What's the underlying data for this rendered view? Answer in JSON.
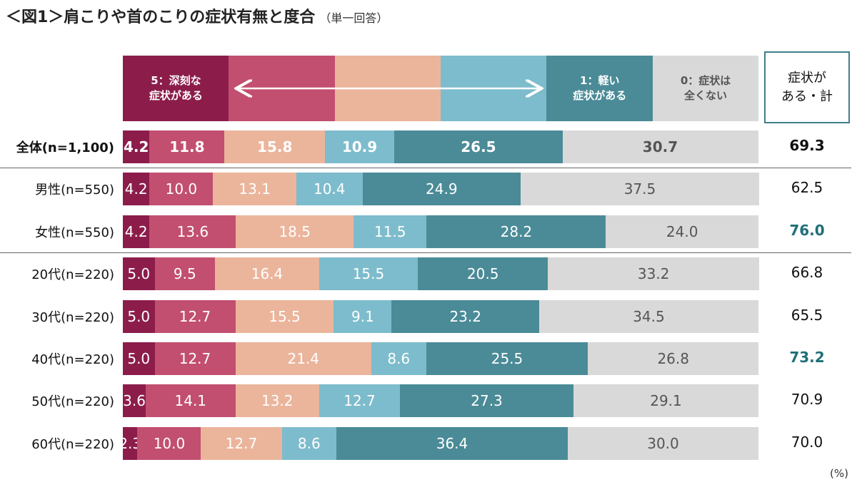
{
  "chart_data": {
    "type": "stacked-bar-horizontal",
    "title": "＜図1＞肩こりや首のこりの症状有無と度合",
    "subtitle": "（単一回答）",
    "unit": "(%)",
    "xlim": [
      0,
      100
    ],
    "categories": [
      "全体(n=1,100)",
      "男性(n=550)",
      "女性(n=550)",
      "20代(n=220)",
      "30代(n=220)",
      "40代(n=220)",
      "50代(n=220)",
      "60代(n=220)"
    ],
    "series": [
      {
        "name": "5：深刻な\n症状がある",
        "color": "#8c1d4b",
        "values": [
          4.2,
          4.2,
          4.2,
          5.0,
          5.0,
          5.0,
          3.6,
          2.3
        ],
        "value_labels": [
          "4.2",
          "4.2",
          "4.2",
          "5.0",
          "5.0",
          "5.0",
          "3.6",
          "2.3"
        ]
      },
      {
        "color": "#c24f70",
        "values": [
          11.8,
          10.0,
          13.6,
          9.5,
          12.7,
          12.7,
          14.1,
          10.0
        ],
        "value_labels": [
          "11.8",
          "10.0",
          "13.6",
          "9.5",
          "12.7",
          "12.7",
          "14.1",
          "10.0"
        ]
      },
      {
        "color": "#ebb59c",
        "values": [
          15.8,
          13.1,
          18.5,
          16.4,
          15.5,
          21.4,
          13.2,
          12.7
        ],
        "value_labels": [
          "15.8",
          "13.1",
          "18.5",
          "16.4",
          "15.5",
          "21.4",
          "13.2",
          "12.7"
        ]
      },
      {
        "color": "#7dbccc",
        "values": [
          10.9,
          10.4,
          11.5,
          15.5,
          9.1,
          8.6,
          12.7,
          8.6
        ],
        "value_labels": [
          "10.9",
          "10.4",
          "11.5",
          "15.5",
          "9.1",
          "8.6",
          "12.7",
          "8.6"
        ]
      },
      {
        "name": "1：軽い\n症状がある",
        "color": "#4a8b97",
        "values": [
          26.5,
          24.9,
          28.2,
          20.5,
          23.2,
          25.5,
          27.3,
          36.4
        ],
        "value_labels": [
          "26.5",
          "24.9",
          "28.2",
          "20.5",
          "23.2",
          "25.5",
          "27.3",
          "36.4"
        ]
      },
      {
        "name": "0：症状は\n全くない",
        "color": "#d9d9d9",
        "values": [
          30.7,
          37.5,
          24.0,
          33.2,
          34.5,
          26.8,
          29.1,
          30.0
        ],
        "value_labels": [
          "30.7",
          "37.5",
          "24.0",
          "33.2",
          "34.5",
          "26.8",
          "29.1",
          "30.0"
        ]
      }
    ],
    "totals": {
      "name": "症状が\nある・計",
      "values": [
        69.3,
        62.5,
        76.0,
        66.8,
        65.5,
        73.2,
        70.9,
        70.0
      ],
      "value_labels": [
        "69.3",
        "62.5",
        "76.0",
        "66.8",
        "65.5",
        "73.2",
        "70.9",
        "70.0"
      ],
      "highlight_color": "#1f6f78"
    }
  }
}
